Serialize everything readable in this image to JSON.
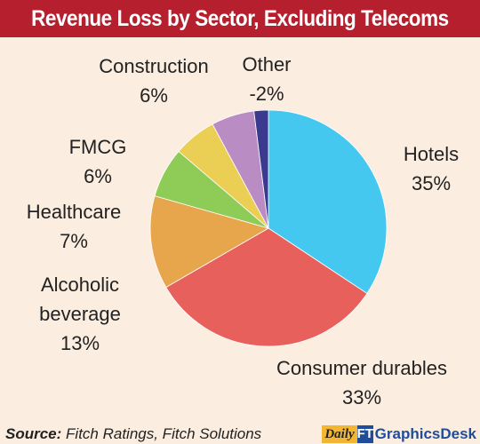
{
  "header": {
    "title": "Revenue Loss by Sector, Excluding Telecoms"
  },
  "footer": {
    "source_label": "Source:",
    "source_text": "Fitch Ratings, Fitch Solutions",
    "brand_daily": "Daily",
    "brand_mark": "FT",
    "brand_name": "GraphicsDesk"
  },
  "chart_data": {
    "type": "pie",
    "title": "Revenue Loss by Sector, Excluding Telecoms",
    "start_angle_deg": 0,
    "direction": "clockwise",
    "slices": [
      {
        "name": "Hotels",
        "value": 35,
        "value_label": "35%",
        "color": "#45c8f0"
      },
      {
        "name": "Consumer durables",
        "value": 33,
        "value_label": "33%",
        "color": "#e8605c"
      },
      {
        "name": "Alcoholic beverage",
        "value": 13,
        "value_label": "13%",
        "color": "#e8a64c"
      },
      {
        "name": "Healthcare",
        "value": 7,
        "value_label": "7%",
        "color": "#8ecb57"
      },
      {
        "name": "FMCG",
        "value": 6,
        "value_label": "6%",
        "color": "#ebcf55"
      },
      {
        "name": "Construction",
        "value": 6,
        "value_label": "6%",
        "color": "#b98dc3"
      },
      {
        "name": "Other",
        "value": -2,
        "value_label": "-2%",
        "color": "#3b3a8f"
      }
    ]
  }
}
